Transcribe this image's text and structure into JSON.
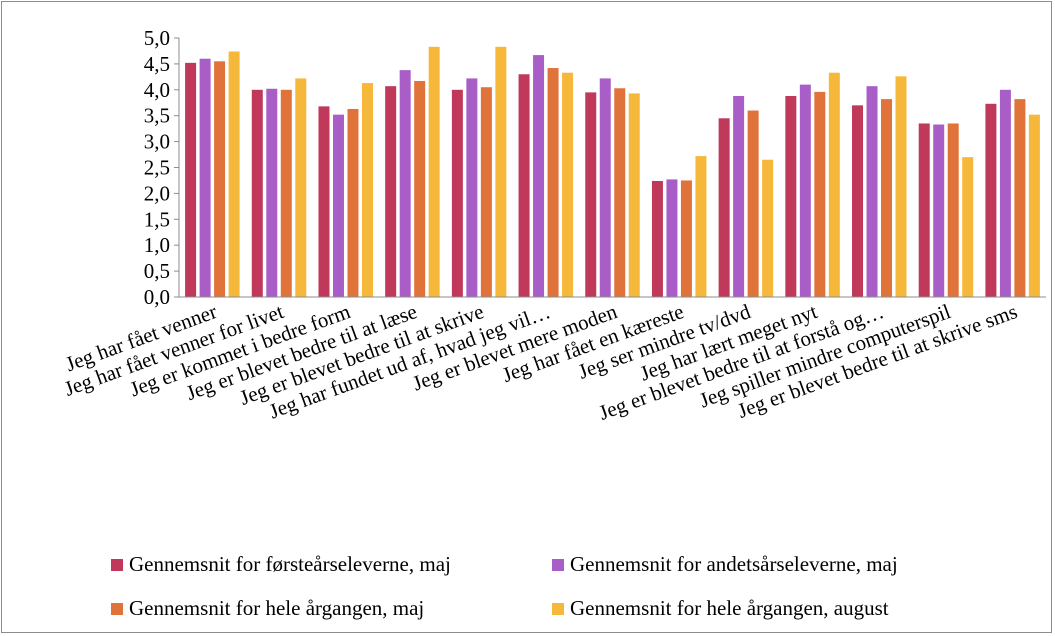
{
  "chart_data": {
    "type": "bar",
    "categories": [
      "Jeg har fået venner",
      "Jeg har fået venner for livet",
      "Jeg er kommet i bedre form",
      "Jeg er blevet bedre til at læse",
      "Jeg er blevet bedre til at skrive",
      "Jeg har fundet ud af, hvad jeg vil…",
      "Jeg er blevet mere moden",
      "Jeg har fået en kæreste",
      "Jeg ser mindre tv/dvd",
      "Jeg har lært meget nyt",
      "Jeg er blevet bedre til at forstå og…",
      "Jeg spiller mindre computerspil",
      "Jeg er blevet bedre til at skrive sms"
    ],
    "series": [
      {
        "name": "Gennemsnit for førsteårseleverne, maj",
        "color": "#c0395a",
        "values": [
          4.52,
          4.0,
          3.68,
          4.07,
          4.0,
          4.3,
          3.95,
          2.24,
          3.45,
          3.88,
          3.7,
          3.35,
          3.73
        ]
      },
      {
        "name": "Gennemsnit for andetsårseleverne, maj",
        "color": "#a95ec7",
        "values": [
          4.6,
          4.02,
          3.52,
          4.38,
          4.22,
          4.67,
          4.22,
          2.27,
          3.88,
          4.1,
          4.07,
          3.33,
          4.0
        ]
      },
      {
        "name": "Gennemsnit for hele årgangen, maj",
        "color": "#e0733a",
        "values": [
          4.55,
          4.0,
          3.63,
          4.17,
          4.05,
          4.42,
          4.03,
          2.25,
          3.6,
          3.96,
          3.82,
          3.35,
          3.82
        ]
      },
      {
        "name": "Gennemsnit for hele årgangen, august",
        "color": "#f6b83a",
        "values": [
          4.74,
          4.22,
          4.13,
          4.83,
          4.83,
          4.33,
          3.93,
          2.72,
          2.65,
          4.33,
          4.26,
          2.7,
          3.52
        ]
      }
    ],
    "yticks": [
      "0,0",
      "0,5",
      "1,0",
      "1,5",
      "2,0",
      "2,5",
      "3,0",
      "3,5",
      "4,0",
      "4,5",
      "5,0"
    ],
    "ylim": [
      0,
      5
    ],
    "grid": false,
    "legend_position": "bottom"
  }
}
